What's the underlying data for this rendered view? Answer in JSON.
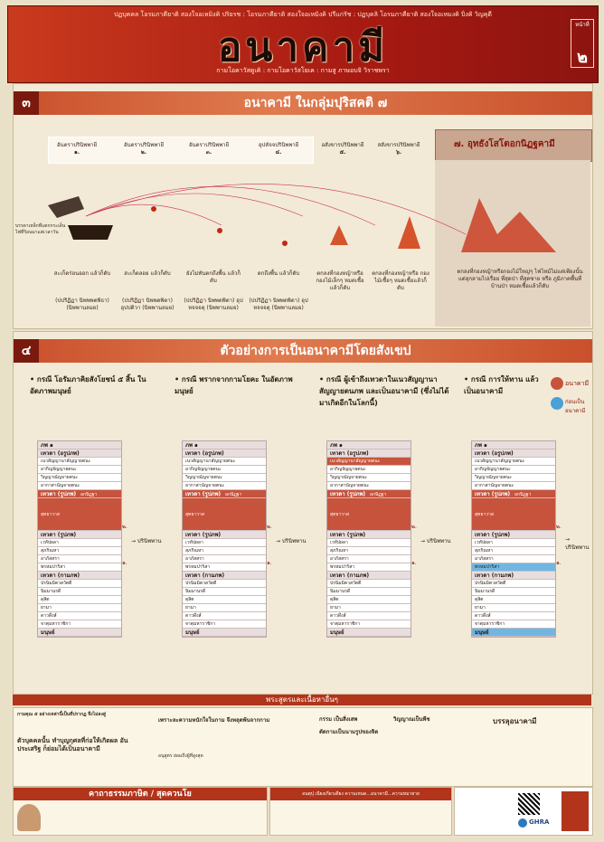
{
  "header": {
    "top_line": "ปฏบุคคล โอรมภาคียาติ สองใจอเหมิงคิ ปริยรช : โอรมภาคียาติ สองใจอเหมิงคิ ปรีแก่รัช : ปฏบุคลิ โอรมภาคียาติ สองใจอเหมงคิ ปิ่งคิ วิญคุดี",
    "title": "อนาคามี",
    "subtitle": "กามโอคาวัสดูเคิ : กามโอคาวัสโยเค : กามสู ภาษอบจิ วิราชพรา",
    "volume_label": "หน้าที่",
    "volume_number": "๒"
  },
  "section3": {
    "number": "๓",
    "title": "อนาคามี ในกลุ่มปุริสคติ ๗",
    "columns": [
      {
        "head": "อันตราปรินิพพายี",
        "num": "๑."
      },
      {
        "head": "อันตราปรินิพพายี",
        "num": "๒."
      },
      {
        "head": "อันตราปรินิพพายี",
        "num": "๓."
      },
      {
        "head": "อุปหัจจปรินิพพายี",
        "num": "๔."
      },
      {
        "head": "อสังขารปรินิพพายี",
        "num": "๕."
      },
      {
        "head": "สสังขารปรินิพพายี",
        "num": "๖."
      }
    ],
    "highlight": "อุทธังโสโตอกนิฏฐคามี",
    "highlight_num": "๗.",
    "captions": [
      "สะเก็ดร่อนออก แล้วก็ดับ",
      "สะเก็ดลอย แล้วก็ดับ",
      "ยังไม่ทันตกถึงพื้น แล้วก็ดับ",
      "ตกถึงพื้น แล้วก็ดับ",
      "ตกลงที่กองหญ้าหรือ กองไม้เล็กๆ หมดเชื้อแล้วก็ดับ",
      "ตกลงที่กองหญ้าหรือ กองไม้เชื้อๆ หมดเชื้อแล้วก็ดับ",
      "ตกลงที่กองหญ้าหรือกองไม้ใหญ่ๆ ไฟไหม้ไม่แต่เพียงนั้นแต่ลุกลามไปเรื่อย ที่สุดป่า ที่สุดซาย หรือ ภูมิภาคพื้นที่บ้านป่า หมดเชื้อแล้วก็ดับ"
    ],
    "sub_captions": [
      "(ปปริฏิฏา นิพพพตพิธา) (นิพพานลมย)",
      "(ปปริฏิฏา นิพพตพิตา) อุปปติวา (นิพพานลมย)",
      "(ปปริฏิฏา นิพพตพิตา) อุปหจจจตุ (นิพพานลมย)",
      "(ปปริฏิฏา นิพพตพิตา) อุปหจจจตุ (นิพพานลมย)"
    ],
    "side_note": "บรรดาเหล็กที่แตกกระเด็น ไฟที่ร้อนมาแต่เวลาวัน"
  },
  "section4": {
    "number": "๔",
    "title": "ตัวอย่างการเป็นอนาคามีโดยสังเขป",
    "cases": [
      {
        "title": "กรณี โอรัมภาคิยสังโยชน์ ๕ สิ้น ในอัตภาพมนุษย์"
      },
      {
        "title": "กรณี พรากจากกามโยคะ ในอัตภาพมนุษย์"
      },
      {
        "title": "กรณี ผู้เข้าถึงเทวดาในเนวสัญญานาสัญญายตนภพ และเป็นอนาคามี (ซึ่งไม่ได้มาเกิดอีกในโลกนี้)"
      },
      {
        "title": "กรณี การให้ทาน แล้วเป็นอนาคามี"
      }
    ],
    "legend": [
      {
        "label": "อนาคามี",
        "color": "#c7533c"
      },
      {
        "label": "ก่อนเป็นอนาคามี",
        "color": "#4aa0d8"
      }
    ],
    "nibbana_label": "ปรินิพพาน",
    "rows": [
      "ภพ ๑",
      "เทวดา (อรูปภพ)",
      "เนวสัญญานาสัญญายตนะ",
      "อากิญจัญญายตนะ",
      "วิญญาณัญจายตนะ",
      "อากาสานัญจายตนะ",
      "เทวดา (รูปภพ)",
      "สุทธาวาส",
      "เทวดา (รูปภพ)",
      "เวหัปผลา",
      "สุภกิณหา",
      "อาภัสสรา",
      "พรหมปาริสา",
      "เทวดา (กามภพ)",
      "ปรนิมมิตวสวัตตี",
      "นิมมานรดี",
      "ดุสิต",
      "ยามา",
      "ดาวดึงส์",
      "จาตุมหาราชิกา",
      "มนุษย์"
    ],
    "akanittha": "อกนิฏฐา",
    "arrow_one": "๑.",
    "arrow_two": "๒."
  },
  "footer": {
    "sutta_bar": "พระสูตรและเนื้อหาอื่นๆ",
    "t1": "กามคุณ ๕ อย่างเหล่านี้เป็นที่ปรากฏ จึงไม่ลงสู่",
    "t2": "ตัวบุคคลนั้น ทำบุญกุศลที่ก่อให้เกิดผล อันประเสริฐ ก็ย่อมได้เป็นอนาคามี",
    "t3": "เพราะละความหนักใจในกาม จึงหลุดพ้นจากกาม",
    "t4": "อนุสูตร ย่อมถึงผู้ที่สูงสุด",
    "t5": "กรรม เป็นสิ่งเสพ",
    "t6": "ตัดกามเป็นนามรูปของจิต",
    "t7": "วิญญาณเป็นพีช",
    "t8": "บรรลุอนาคามี",
    "verse_bar": "คาถาธรรมภาษิต / สุดควนโย",
    "verse_note": "อนตุปุ เนียงเกียวเดียง ความเหนด...อนาคามี...ความหมายาย",
    "brand": "GHRA"
  }
}
